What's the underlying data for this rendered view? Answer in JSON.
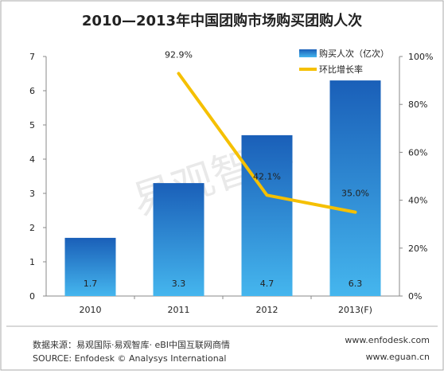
{
  "chart_data": {
    "type": "bar",
    "title": "2010—2013年中国团购市场购买团购人次",
    "categories": [
      "2010",
      "2011",
      "2012",
      "2013(F)"
    ],
    "series": [
      {
        "name": "购买人次（亿次）",
        "type": "bar",
        "axis": "left",
        "values": [
          1.7,
          3.3,
          4.7,
          6.3
        ],
        "labels": [
          "1.7",
          "3.3",
          "4.7",
          "6.3"
        ],
        "color": "#2b7ed1"
      },
      {
        "name": "环比增长率",
        "type": "line",
        "axis": "right",
        "values": [
          null,
          92.9,
          42.1,
          35.0
        ],
        "labels": [
          "",
          "92.9%",
          "42.1%",
          "35.0%"
        ],
        "color": "#f5c000"
      }
    ],
    "y_left": {
      "ylim": [
        0,
        7
      ],
      "ticks": [
        "0",
        "1",
        "2",
        "3",
        "4",
        "5",
        "6",
        "7"
      ]
    },
    "y_right": {
      "ylim": [
        0,
        100
      ],
      "ticks": [
        "0%",
        "20%",
        "40%",
        "60%",
        "80%",
        "100%"
      ]
    },
    "legend_position": "top-right",
    "grid": false
  },
  "watermark": "易观智库",
  "footer": {
    "source_cn": "数据来源：易观国际·易观智库· eBI中国互联网商情",
    "source_en": "SOURCE: Enfodesk © Analysys International",
    "url1": "www.enfodesk.com",
    "url2": "www.eguan.cn"
  }
}
